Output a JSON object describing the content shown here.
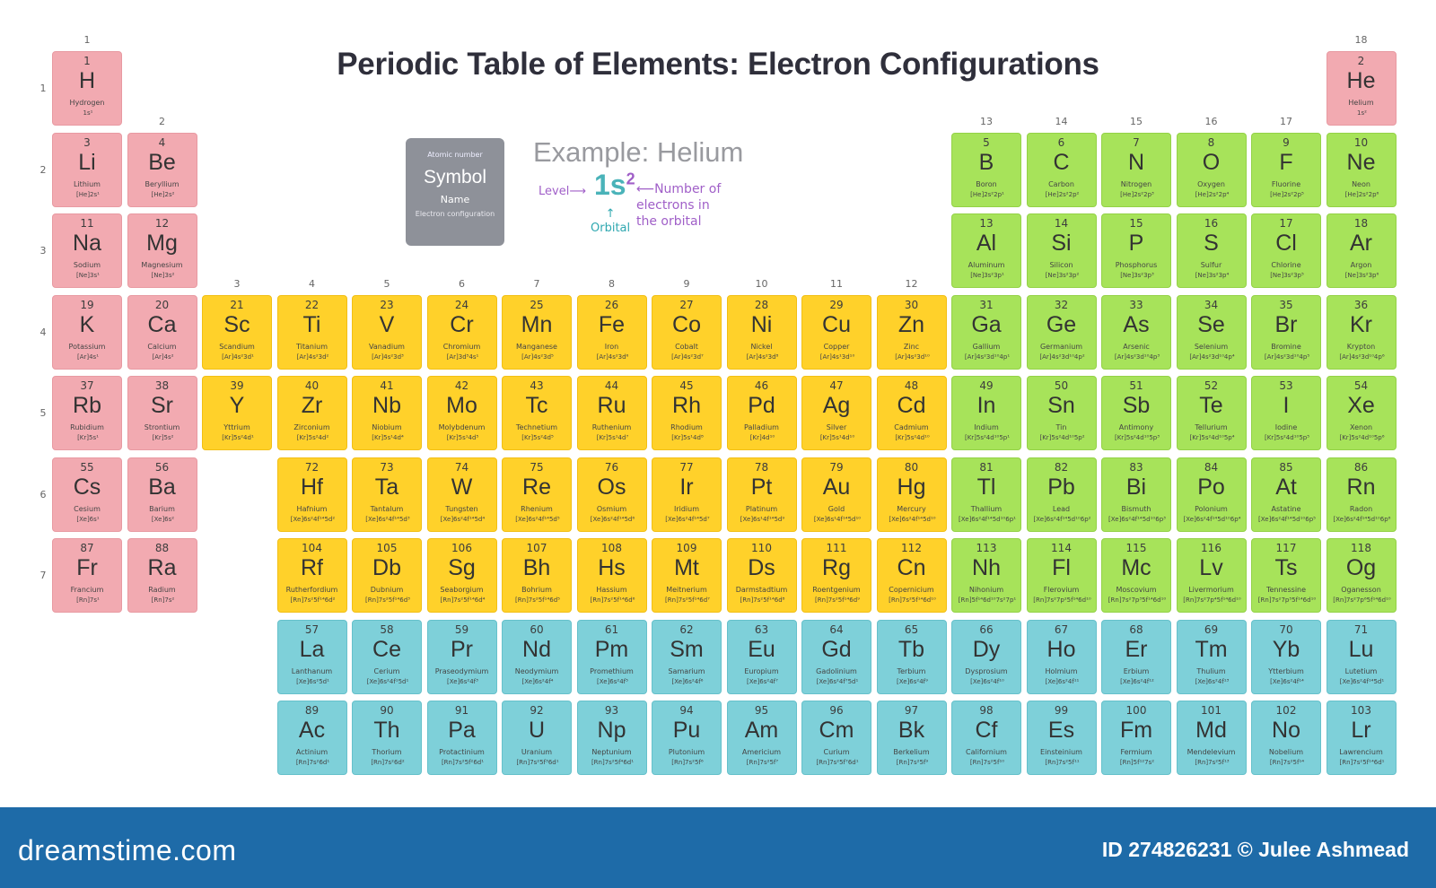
{
  "title": "Periodic Table of Elements: Electron Configurations",
  "legend": {
    "atomic_number": "Atomic number",
    "symbol": "Symbol",
    "name": "Name",
    "configuration": "Electron configuration"
  },
  "example": {
    "title": "Example: Helium",
    "config_base": "1s",
    "config_sup": "2",
    "level_label": "Level",
    "electrons_label_1": "Number of",
    "electrons_label_2": "electrons in",
    "electrons_label_3": "the orbital",
    "orbital_label": "Orbital"
  },
  "groups": [
    "1",
    "2",
    "3",
    "4",
    "5",
    "6",
    "7",
    "8",
    "9",
    "10",
    "11",
    "12",
    "13",
    "14",
    "15",
    "16",
    "17",
    "18"
  ],
  "periods": [
    "1",
    "2",
    "3",
    "4",
    "5",
    "6",
    "7"
  ],
  "block_colors": {
    "s": "#f2aab1",
    "p": "#a7e35a",
    "d": "#ffd12a",
    "f": "#7ed0d9"
  },
  "elements": [
    {
      "n": "1",
      "s": "H",
      "name": "Hydrogen",
      "c": "1s¹",
      "g": 1,
      "p": 1,
      "b": "s"
    },
    {
      "n": "2",
      "s": "He",
      "name": "Helium",
      "c": "1s²",
      "g": 18,
      "p": 1,
      "b": "s"
    },
    {
      "n": "3",
      "s": "Li",
      "name": "Lithium",
      "c": "[He]2s¹",
      "g": 1,
      "p": 2,
      "b": "s"
    },
    {
      "n": "4",
      "s": "Be",
      "name": "Beryllium",
      "c": "[He]2s²",
      "g": 2,
      "p": 2,
      "b": "s"
    },
    {
      "n": "5",
      "s": "B",
      "name": "Boron",
      "c": "[He]2s²2p¹",
      "g": 13,
      "p": 2,
      "b": "p"
    },
    {
      "n": "6",
      "s": "C",
      "name": "Carbon",
      "c": "[He]2s²2p²",
      "g": 14,
      "p": 2,
      "b": "p"
    },
    {
      "n": "7",
      "s": "N",
      "name": "Nitrogen",
      "c": "[He]2s²2p³",
      "g": 15,
      "p": 2,
      "b": "p"
    },
    {
      "n": "8",
      "s": "O",
      "name": "Oxygen",
      "c": "[He]2s²2p⁴",
      "g": 16,
      "p": 2,
      "b": "p"
    },
    {
      "n": "9",
      "s": "F",
      "name": "Fluorine",
      "c": "[He]2s²2p⁵",
      "g": 17,
      "p": 2,
      "b": "p"
    },
    {
      "n": "10",
      "s": "Ne",
      "name": "Neon",
      "c": "[He]2s²2p⁶",
      "g": 18,
      "p": 2,
      "b": "p"
    },
    {
      "n": "11",
      "s": "Na",
      "name": "Sodium",
      "c": "[Ne]3s¹",
      "g": 1,
      "p": 3,
      "b": "s"
    },
    {
      "n": "12",
      "s": "Mg",
      "name": "Magnesium",
      "c": "[Ne]3s²",
      "g": 2,
      "p": 3,
      "b": "s"
    },
    {
      "n": "13",
      "s": "Al",
      "name": "Aluminum",
      "c": "[Ne]3s²3p¹",
      "g": 13,
      "p": 3,
      "b": "p"
    },
    {
      "n": "14",
      "s": "Si",
      "name": "Silicon",
      "c": "[Ne]3s²3p²",
      "g": 14,
      "p": 3,
      "b": "p"
    },
    {
      "n": "15",
      "s": "P",
      "name": "Phosphorus",
      "c": "[Ne]3s²3p³",
      "g": 15,
      "p": 3,
      "b": "p"
    },
    {
      "n": "16",
      "s": "S",
      "name": "Sulfur",
      "c": "[Ne]3s²3p⁴",
      "g": 16,
      "p": 3,
      "b": "p"
    },
    {
      "n": "17",
      "s": "Cl",
      "name": "Chlorine",
      "c": "[Ne]3s²3p⁵",
      "g": 17,
      "p": 3,
      "b": "p"
    },
    {
      "n": "18",
      "s": "Ar",
      "name": "Argon",
      "c": "[Ne]3s²3p⁶",
      "g": 18,
      "p": 3,
      "b": "p"
    },
    {
      "n": "19",
      "s": "K",
      "name": "Potassium",
      "c": "[Ar]4s¹",
      "g": 1,
      "p": 4,
      "b": "s"
    },
    {
      "n": "20",
      "s": "Ca",
      "name": "Calcium",
      "c": "[Ar]4s²",
      "g": 2,
      "p": 4,
      "b": "s"
    },
    {
      "n": "21",
      "s": "Sc",
      "name": "Scandium",
      "c": "[Ar]4s²3d¹",
      "g": 3,
      "p": 4,
      "b": "d"
    },
    {
      "n": "22",
      "s": "Ti",
      "name": "Titanium",
      "c": "[Ar]4s²3d²",
      "g": 4,
      "p": 4,
      "b": "d"
    },
    {
      "n": "23",
      "s": "V",
      "name": "Vanadium",
      "c": "[Ar]4s²3d³",
      "g": 5,
      "p": 4,
      "b": "d"
    },
    {
      "n": "24",
      "s": "Cr",
      "name": "Chromium",
      "c": "[Ar]3d⁵4s¹",
      "g": 6,
      "p": 4,
      "b": "d"
    },
    {
      "n": "25",
      "s": "Mn",
      "name": "Manganese",
      "c": "[Ar]4s²3d⁵",
      "g": 7,
      "p": 4,
      "b": "d"
    },
    {
      "n": "26",
      "s": "Fe",
      "name": "Iron",
      "c": "[Ar]4s²3d⁶",
      "g": 8,
      "p": 4,
      "b": "d"
    },
    {
      "n": "27",
      "s": "Co",
      "name": "Cobalt",
      "c": "[Ar]4s²3d⁷",
      "g": 9,
      "p": 4,
      "b": "d"
    },
    {
      "n": "28",
      "s": "Ni",
      "name": "Nickel",
      "c": "[Ar]4s²3d⁸",
      "g": 10,
      "p": 4,
      "b": "d"
    },
    {
      "n": "29",
      "s": "Cu",
      "name": "Copper",
      "c": "[Ar]4s¹3d¹⁰",
      "g": 11,
      "p": 4,
      "b": "d"
    },
    {
      "n": "30",
      "s": "Zn",
      "name": "Zinc",
      "c": "[Ar]4s²3d¹⁰",
      "g": 12,
      "p": 4,
      "b": "d"
    },
    {
      "n": "31",
      "s": "Ga",
      "name": "Gallium",
      "c": "[Ar]4s²3d¹⁰4p¹",
      "g": 13,
      "p": 4,
      "b": "p"
    },
    {
      "n": "32",
      "s": "Ge",
      "name": "Germanium",
      "c": "[Ar]4s²3d¹⁰4p²",
      "g": 14,
      "p": 4,
      "b": "p"
    },
    {
      "n": "33",
      "s": "As",
      "name": "Arsenic",
      "c": "[Ar]4s²3d¹⁰4p³",
      "g": 15,
      "p": 4,
      "b": "p"
    },
    {
      "n": "34",
      "s": "Se",
      "name": "Selenium",
      "c": "[Ar]4s²3d¹⁰4p⁴",
      "g": 16,
      "p": 4,
      "b": "p"
    },
    {
      "n": "35",
      "s": "Br",
      "name": "Bromine",
      "c": "[Ar]4s²3d¹⁰4p⁵",
      "g": 17,
      "p": 4,
      "b": "p"
    },
    {
      "n": "36",
      "s": "Kr",
      "name": "Krypton",
      "c": "[Ar]4s²3d¹⁰4p⁶",
      "g": 18,
      "p": 4,
      "b": "p"
    },
    {
      "n": "37",
      "s": "Rb",
      "name": "Rubidium",
      "c": "[Kr]5s¹",
      "g": 1,
      "p": 5,
      "b": "s"
    },
    {
      "n": "38",
      "s": "Sr",
      "name": "Strontium",
      "c": "[Kr]5s²",
      "g": 2,
      "p": 5,
      "b": "s"
    },
    {
      "n": "39",
      "s": "Y",
      "name": "Yttrium",
      "c": "[Kr]5s²4d¹",
      "g": 3,
      "p": 5,
      "b": "d"
    },
    {
      "n": "40",
      "s": "Zr",
      "name": "Zirconium",
      "c": "[Kr]5s²4d²",
      "g": 4,
      "p": 5,
      "b": "d"
    },
    {
      "n": "41",
      "s": "Nb",
      "name": "Niobium",
      "c": "[Kr]5s¹4d⁴",
      "g": 5,
      "p": 5,
      "b": "d"
    },
    {
      "n": "42",
      "s": "Mo",
      "name": "Molybdenum",
      "c": "[Kr]5s¹4d⁵",
      "g": 6,
      "p": 5,
      "b": "d"
    },
    {
      "n": "43",
      "s": "Tc",
      "name": "Technetium",
      "c": "[Kr]5s²4d⁵",
      "g": 7,
      "p": 5,
      "b": "d"
    },
    {
      "n": "44",
      "s": "Ru",
      "name": "Ruthenium",
      "c": "[Kr]5s¹4d⁷",
      "g": 8,
      "p": 5,
      "b": "d"
    },
    {
      "n": "45",
      "s": "Rh",
      "name": "Rhodium",
      "c": "[Kr]5s¹4d⁸",
      "g": 9,
      "p": 5,
      "b": "d"
    },
    {
      "n": "46",
      "s": "Pd",
      "name": "Palladium",
      "c": "[Kr]4d¹⁰",
      "g": 10,
      "p": 5,
      "b": "d"
    },
    {
      "n": "47",
      "s": "Ag",
      "name": "Silver",
      "c": "[Kr]5s¹4d¹⁰",
      "g": 11,
      "p": 5,
      "b": "d"
    },
    {
      "n": "48",
      "s": "Cd",
      "name": "Cadmium",
      "c": "[Kr]5s²4d¹⁰",
      "g": 12,
      "p": 5,
      "b": "d"
    },
    {
      "n": "49",
      "s": "In",
      "name": "Indium",
      "c": "[Kr]5s²4d¹⁰5p¹",
      "g": 13,
      "p": 5,
      "b": "p"
    },
    {
      "n": "50",
      "s": "Sn",
      "name": "Tin",
      "c": "[Kr]5s²4d¹⁰5p²",
      "g": 14,
      "p": 5,
      "b": "p"
    },
    {
      "n": "51",
      "s": "Sb",
      "name": "Antimony",
      "c": "[Kr]5s²4d¹⁰5p³",
      "g": 15,
      "p": 5,
      "b": "p"
    },
    {
      "n": "52",
      "s": "Te",
      "name": "Tellurium",
      "c": "[Kr]5s²4d¹⁰5p⁴",
      "g": 16,
      "p": 5,
      "b": "p"
    },
    {
      "n": "53",
      "s": "I",
      "name": "Iodine",
      "c": "[Kr]5s²4d¹⁰5p⁵",
      "g": 17,
      "p": 5,
      "b": "p"
    },
    {
      "n": "54",
      "s": "Xe",
      "name": "Xenon",
      "c": "[Kr]5s²4d¹⁰5p⁶",
      "g": 18,
      "p": 5,
      "b": "p"
    },
    {
      "n": "55",
      "s": "Cs",
      "name": "Cesium",
      "c": "[Xe]6s¹",
      "g": 1,
      "p": 6,
      "b": "s"
    },
    {
      "n": "56",
      "s": "Ba",
      "name": "Barium",
      "c": "[Xe]6s²",
      "g": 2,
      "p": 6,
      "b": "s"
    },
    {
      "n": "72",
      "s": "Hf",
      "name": "Hafnium",
      "c": "[Xe]6s²4f¹⁴5d²",
      "g": 4,
      "p": 6,
      "b": "d"
    },
    {
      "n": "73",
      "s": "Ta",
      "name": "Tantalum",
      "c": "[Xe]6s²4f¹⁴5d³",
      "g": 5,
      "p": 6,
      "b": "d"
    },
    {
      "n": "74",
      "s": "W",
      "name": "Tungsten",
      "c": "[Xe]6s²4f¹⁴5d⁴",
      "g": 6,
      "p": 6,
      "b": "d"
    },
    {
      "n": "75",
      "s": "Re",
      "name": "Rhenium",
      "c": "[Xe]6s²4f¹⁴5d⁵",
      "g": 7,
      "p": 6,
      "b": "d"
    },
    {
      "n": "76",
      "s": "Os",
      "name": "Osmium",
      "c": "[Xe]6s²4f¹⁴5d⁶",
      "g": 8,
      "p": 6,
      "b": "d"
    },
    {
      "n": "77",
      "s": "Ir",
      "name": "Iridium",
      "c": "[Xe]6s²4f¹⁴5d⁷",
      "g": 9,
      "p": 6,
      "b": "d"
    },
    {
      "n": "78",
      "s": "Pt",
      "name": "Platinum",
      "c": "[Xe]6s¹4f¹⁴5d⁹",
      "g": 10,
      "p": 6,
      "b": "d"
    },
    {
      "n": "79",
      "s": "Au",
      "name": "Gold",
      "c": "[Xe]6s¹4f¹⁴5d¹⁰",
      "g": 11,
      "p": 6,
      "b": "d"
    },
    {
      "n": "80",
      "s": "Hg",
      "name": "Mercury",
      "c": "[Xe]6s²4f¹⁴5d¹⁰",
      "g": 12,
      "p": 6,
      "b": "d"
    },
    {
      "n": "81",
      "s": "Tl",
      "name": "Thallium",
      "c": "[Xe]6s²4f¹⁴5d¹⁰6p¹",
      "g": 13,
      "p": 6,
      "b": "p"
    },
    {
      "n": "82",
      "s": "Pb",
      "name": "Lead",
      "c": "[Xe]6s²4f¹⁴5d¹⁰6p²",
      "g": 14,
      "p": 6,
      "b": "p"
    },
    {
      "n": "83",
      "s": "Bi",
      "name": "Bismuth",
      "c": "[Xe]6s²4f¹⁴5d¹⁰6p³",
      "g": 15,
      "p": 6,
      "b": "p"
    },
    {
      "n": "84",
      "s": "Po",
      "name": "Polonium",
      "c": "[Xe]6s²4f¹⁴5d¹⁰6p⁴",
      "g": 16,
      "p": 6,
      "b": "p"
    },
    {
      "n": "85",
      "s": "At",
      "name": "Astatine",
      "c": "[Xe]6s²4f¹⁴5d¹⁰6p⁵",
      "g": 17,
      "p": 6,
      "b": "p"
    },
    {
      "n": "86",
      "s": "Rn",
      "name": "Radon",
      "c": "[Xe]6s²4f¹⁴5d¹⁰6p⁶",
      "g": 18,
      "p": 6,
      "b": "p"
    },
    {
      "n": "87",
      "s": "Fr",
      "name": "Francium",
      "c": "[Rn]7s¹",
      "g": 1,
      "p": 7,
      "b": "s"
    },
    {
      "n": "88",
      "s": "Ra",
      "name": "Radium",
      "c": "[Rn]7s²",
      "g": 2,
      "p": 7,
      "b": "s"
    },
    {
      "n": "104",
      "s": "Rf",
      "name": "Rutherfordium",
      "c": "[Rn]7s²5f¹⁴6d²",
      "g": 4,
      "p": 7,
      "b": "d"
    },
    {
      "n": "105",
      "s": "Db",
      "name": "Dubnium",
      "c": "[Rn]7s²5f¹⁴6d³",
      "g": 5,
      "p": 7,
      "b": "d"
    },
    {
      "n": "106",
      "s": "Sg",
      "name": "Seaborgium",
      "c": "[Rn]7s²5f¹⁴6d⁴",
      "g": 6,
      "p": 7,
      "b": "d"
    },
    {
      "n": "107",
      "s": "Bh",
      "name": "Bohrium",
      "c": "[Rn]7s²5f¹⁴6d⁵",
      "g": 7,
      "p": 7,
      "b": "d"
    },
    {
      "n": "108",
      "s": "Hs",
      "name": "Hassium",
      "c": "[Rn]7s²5f¹⁴6d⁶",
      "g": 8,
      "p": 7,
      "b": "d"
    },
    {
      "n": "109",
      "s": "Mt",
      "name": "Meitnerium",
      "c": "[Rn]7s²5f¹⁴6d⁷",
      "g": 9,
      "p": 7,
      "b": "d"
    },
    {
      "n": "110",
      "s": "Ds",
      "name": "Darmstadtium",
      "c": "[Rn]7s²5f¹⁴6d⁸",
      "g": 10,
      "p": 7,
      "b": "d"
    },
    {
      "n": "111",
      "s": "Rg",
      "name": "Roentgenium",
      "c": "[Rn]7s²5f¹⁴6d⁹",
      "g": 11,
      "p": 7,
      "b": "d"
    },
    {
      "n": "112",
      "s": "Cn",
      "name": "Copernicium",
      "c": "[Rn]7s²5f¹⁴6d¹⁰",
      "g": 12,
      "p": 7,
      "b": "d"
    },
    {
      "n": "113",
      "s": "Nh",
      "name": "Nihonium",
      "c": "[Rn]5f¹⁴6d¹⁰7s²7p¹",
      "g": 13,
      "p": 7,
      "b": "p"
    },
    {
      "n": "114",
      "s": "Fl",
      "name": "Flerovium",
      "c": "[Rn]7s²7p²5f¹⁴6d¹⁰",
      "g": 14,
      "p": 7,
      "b": "p"
    },
    {
      "n": "115",
      "s": "Mc",
      "name": "Moscovium",
      "c": "[Rn]7s²7p³5f¹⁴6d¹⁰",
      "g": 15,
      "p": 7,
      "b": "p"
    },
    {
      "n": "116",
      "s": "Lv",
      "name": "Livermorium",
      "c": "[Rn]7s²7p⁴5f¹⁴6d¹⁰",
      "g": 16,
      "p": 7,
      "b": "p"
    },
    {
      "n": "117",
      "s": "Ts",
      "name": "Tennessine",
      "c": "[Rn]7s²7p⁵5f¹⁴6d¹⁰",
      "g": 17,
      "p": 7,
      "b": "p"
    },
    {
      "n": "118",
      "s": "Og",
      "name": "Oganesson",
      "c": "[Rn]7s²7p⁶5f¹⁴6d¹⁰",
      "g": 18,
      "p": 7,
      "b": "p"
    },
    {
      "n": "57",
      "s": "La",
      "name": "Lanthanum",
      "c": "[Xe]6s²5d¹",
      "g": 4,
      "p": 8,
      "b": "f"
    },
    {
      "n": "58",
      "s": "Ce",
      "name": "Cerium",
      "c": "[Xe]6s²4f¹5d¹",
      "g": 5,
      "p": 8,
      "b": "f"
    },
    {
      "n": "59",
      "s": "Pr",
      "name": "Praseodymium",
      "c": "[Xe]6s²4f³",
      "g": 6,
      "p": 8,
      "b": "f"
    },
    {
      "n": "60",
      "s": "Nd",
      "name": "Neodymium",
      "c": "[Xe]6s²4f⁴",
      "g": 7,
      "p": 8,
      "b": "f"
    },
    {
      "n": "61",
      "s": "Pm",
      "name": "Promethium",
      "c": "[Xe]6s²4f⁵",
      "g": 8,
      "p": 8,
      "b": "f"
    },
    {
      "n": "62",
      "s": "Sm",
      "name": "Samarium",
      "c": "[Xe]6s²4f⁶",
      "g": 9,
      "p": 8,
      "b": "f"
    },
    {
      "n": "63",
      "s": "Eu",
      "name": "Europium",
      "c": "[Xe]6s²4f⁷",
      "g": 10,
      "p": 8,
      "b": "f"
    },
    {
      "n": "64",
      "s": "Gd",
      "name": "Gadolinium",
      "c": "[Xe]6s²4f⁷5d¹",
      "g": 11,
      "p": 8,
      "b": "f"
    },
    {
      "n": "65",
      "s": "Tb",
      "name": "Terbium",
      "c": "[Xe]6s²4f⁹",
      "g": 12,
      "p": 8,
      "b": "f"
    },
    {
      "n": "66",
      "s": "Dy",
      "name": "Dysprosium",
      "c": "[Xe]6s²4f¹⁰",
      "g": 13,
      "p": 8,
      "b": "f"
    },
    {
      "n": "67",
      "s": "Ho",
      "name": "Holmium",
      "c": "[Xe]6s²4f¹¹",
      "g": 14,
      "p": 8,
      "b": "f"
    },
    {
      "n": "68",
      "s": "Er",
      "name": "Erbium",
      "c": "[Xe]6s²4f¹²",
      "g": 15,
      "p": 8,
      "b": "f"
    },
    {
      "n": "69",
      "s": "Tm",
      "name": "Thulium",
      "c": "[Xe]6s²4f¹³",
      "g": 16,
      "p": 8,
      "b": "f"
    },
    {
      "n": "70",
      "s": "Yb",
      "name": "Ytterbium",
      "c": "[Xe]6s²4f¹⁴",
      "g": 17,
      "p": 8,
      "b": "f"
    },
    {
      "n": "71",
      "s": "Lu",
      "name": "Lutetium",
      "c": "[Xe]6s²4f¹⁴5d¹",
      "g": 18,
      "p": 8,
      "b": "f"
    },
    {
      "n": "89",
      "s": "Ac",
      "name": "Actinium",
      "c": "[Rn]7s²6d¹",
      "g": 4,
      "p": 9,
      "b": "f"
    },
    {
      "n": "90",
      "s": "Th",
      "name": "Thorium",
      "c": "[Rn]7s²6d²",
      "g": 5,
      "p": 9,
      "b": "f"
    },
    {
      "n": "91",
      "s": "Pa",
      "name": "Protactinium",
      "c": "[Rn]7s²5f²6d¹",
      "g": 6,
      "p": 9,
      "b": "f"
    },
    {
      "n": "92",
      "s": "U",
      "name": "Uranium",
      "c": "[Rn]7s²5f³6d¹",
      "g": 7,
      "p": 9,
      "b": "f"
    },
    {
      "n": "93",
      "s": "Np",
      "name": "Neptunium",
      "c": "[Rn]7s²5f⁴6d¹",
      "g": 8,
      "p": 9,
      "b": "f"
    },
    {
      "n": "94",
      "s": "Pu",
      "name": "Plutonium",
      "c": "[Rn]7s²5f⁶",
      "g": 9,
      "p": 9,
      "b": "f"
    },
    {
      "n": "95",
      "s": "Am",
      "name": "Americium",
      "c": "[Rn]7s²5f⁷",
      "g": 10,
      "p": 9,
      "b": "f"
    },
    {
      "n": "96",
      "s": "Cm",
      "name": "Curium",
      "c": "[Rn]7s²5f⁷6d¹",
      "g": 11,
      "p": 9,
      "b": "f"
    },
    {
      "n": "97",
      "s": "Bk",
      "name": "Berkelium",
      "c": "[Rn]7s²5f⁹",
      "g": 12,
      "p": 9,
      "b": "f"
    },
    {
      "n": "98",
      "s": "Cf",
      "name": "Californium",
      "c": "[Rn]7s²5f¹⁰",
      "g": 13,
      "p": 9,
      "b": "f"
    },
    {
      "n": "99",
      "s": "Es",
      "name": "Einsteinium",
      "c": "[Rn]7s²5f¹¹",
      "g": 14,
      "p": 9,
      "b": "f"
    },
    {
      "n": "100",
      "s": "Fm",
      "name": "Fermium",
      "c": "[Rn]5f¹²7s²",
      "g": 15,
      "p": 9,
      "b": "f"
    },
    {
      "n": "101",
      "s": "Md",
      "name": "Mendelevium",
      "c": "[Rn]7s²5f¹³",
      "g": 16,
      "p": 9,
      "b": "f"
    },
    {
      "n": "102",
      "s": "No",
      "name": "Nobelium",
      "c": "[Rn]7s²5f¹⁴",
      "g": 17,
      "p": 9,
      "b": "f"
    },
    {
      "n": "103",
      "s": "Lr",
      "name": "Lawrencium",
      "c": "[Rn]7s²5f¹⁴6d¹",
      "g": 18,
      "p": 9,
      "b": "f"
    }
  ],
  "footer": {
    "brand": "dreamstime.com",
    "credit": "ID 274826231 © Julee Ashmead"
  }
}
